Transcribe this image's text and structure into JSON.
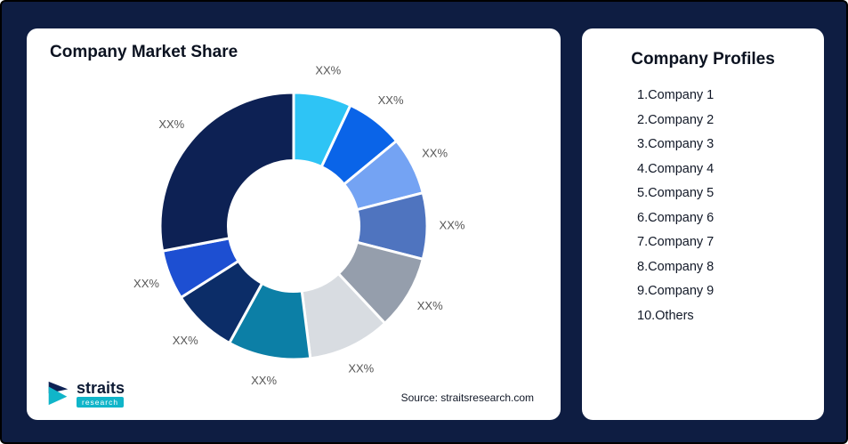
{
  "page": {
    "background_color": "#0e1d42"
  },
  "left_card": {
    "title": "Company Market Share",
    "source": "Source: straitsresearch.com",
    "logo": {
      "name": "straits",
      "sub": "research"
    }
  },
  "right_card": {
    "title": "Company Profiles",
    "items": [
      "1.Company 1",
      "2.Company 2",
      "3.Company 3",
      "4.Company 4",
      "5.Company 5",
      "6.Company 6",
      "7.Company 7",
      "8.Company 8",
      "9.Company 9",
      "10.Others"
    ]
  },
  "chart_data": {
    "type": "pie",
    "donut": true,
    "title": "Company Market Share",
    "start_angle_deg": 0,
    "direction": "clockwise",
    "inner_radius_ratio": 0.49,
    "label_color": "#575757",
    "slice_stroke": "#ffffff",
    "slices": [
      {
        "label": "XX%",
        "value": 7,
        "color": "#2ec4f5"
      },
      {
        "label": "XX%",
        "value": 7,
        "color": "#0a64e8"
      },
      {
        "label": "XX%",
        "value": 7,
        "color": "#74a3f3"
      },
      {
        "label": "XX%",
        "value": 8,
        "color": "#4f74bf"
      },
      {
        "label": "XX%",
        "value": 9,
        "color": "#959eac"
      },
      {
        "label": "XX%",
        "value": 10,
        "color": "#d8dce1"
      },
      {
        "label": "XX%",
        "value": 10,
        "color": "#0c7fa6"
      },
      {
        "label": "XX%",
        "value": 8,
        "color": "#0c2d68"
      },
      {
        "label": "XX%",
        "value": 6,
        "color": "#1d4fd2"
      },
      {
        "label": "XX%",
        "value": 28,
        "color": "#0d2154"
      }
    ]
  }
}
